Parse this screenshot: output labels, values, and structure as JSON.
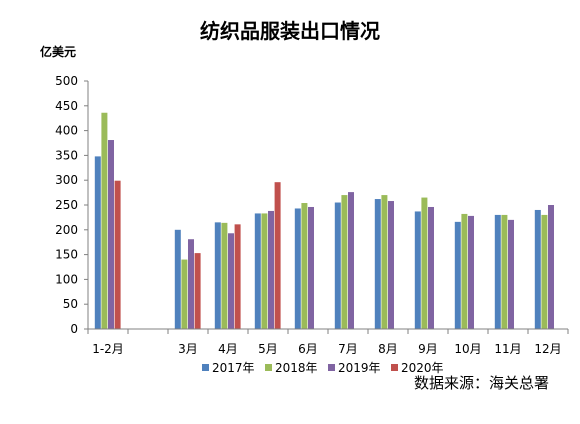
{
  "chart_data": {
    "type": "bar",
    "title": "纺织品服装出口情况",
    "ylabel": "亿美元",
    "xlabel": "",
    "categories": [
      "1-2月",
      "",
      "3月",
      "4月",
      "5月",
      "6月",
      "7月",
      "8月",
      "9月",
      "10月",
      "11月",
      "12月"
    ],
    "series": [
      {
        "name": "2017年",
        "color": "#4F81BD",
        "values": [
          348,
          null,
          200,
          215,
          233,
          243,
          255,
          262,
          237,
          216,
          230,
          240
        ]
      },
      {
        "name": "2018年",
        "color": "#9BBB59",
        "values": [
          436,
          null,
          140,
          214,
          233,
          254,
          270,
          270,
          265,
          232,
          230,
          230
        ]
      },
      {
        "name": "2019年",
        "color": "#8064A2",
        "values": [
          381,
          null,
          181,
          193,
          238,
          246,
          276,
          258,
          246,
          228,
          220,
          250
        ]
      },
      {
        "name": "2020年",
        "color": "#C0504D",
        "values": [
          299,
          null,
          153,
          211,
          296,
          null,
          null,
          null,
          null,
          null,
          null,
          null
        ]
      }
    ],
    "ylim": [
      0,
      500
    ],
    "yticks": [
      0,
      50,
      100,
      150,
      200,
      250,
      300,
      350,
      400,
      450,
      500
    ],
    "legend_position": "bottom",
    "grid": false,
    "source_note": "数据来源：海关总署"
  }
}
